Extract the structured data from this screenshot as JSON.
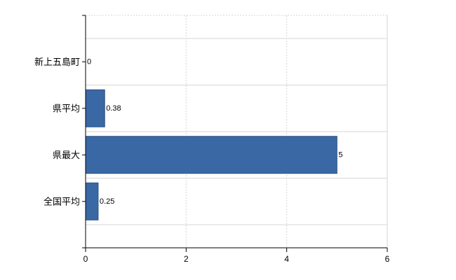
{
  "chart_data": {
    "type": "bar",
    "orientation": "horizontal",
    "categories": [
      "新上五島町",
      "県平均",
      "県最大",
      "全国平均"
    ],
    "values": [
      0,
      0.38,
      5,
      0.25
    ],
    "value_labels": [
      "0",
      "0.38",
      "5",
      "0.25"
    ],
    "xlim": [
      0,
      6
    ],
    "xticks": [
      "0",
      "2",
      "4",
      "6"
    ],
    "xtick_values": [
      0,
      2,
      4,
      6
    ],
    "grid": true,
    "bar_color": "#3a68a4",
    "bar_stroke": "#2a4f80",
    "title": "",
    "xlabel": "",
    "ylabel": ""
  }
}
